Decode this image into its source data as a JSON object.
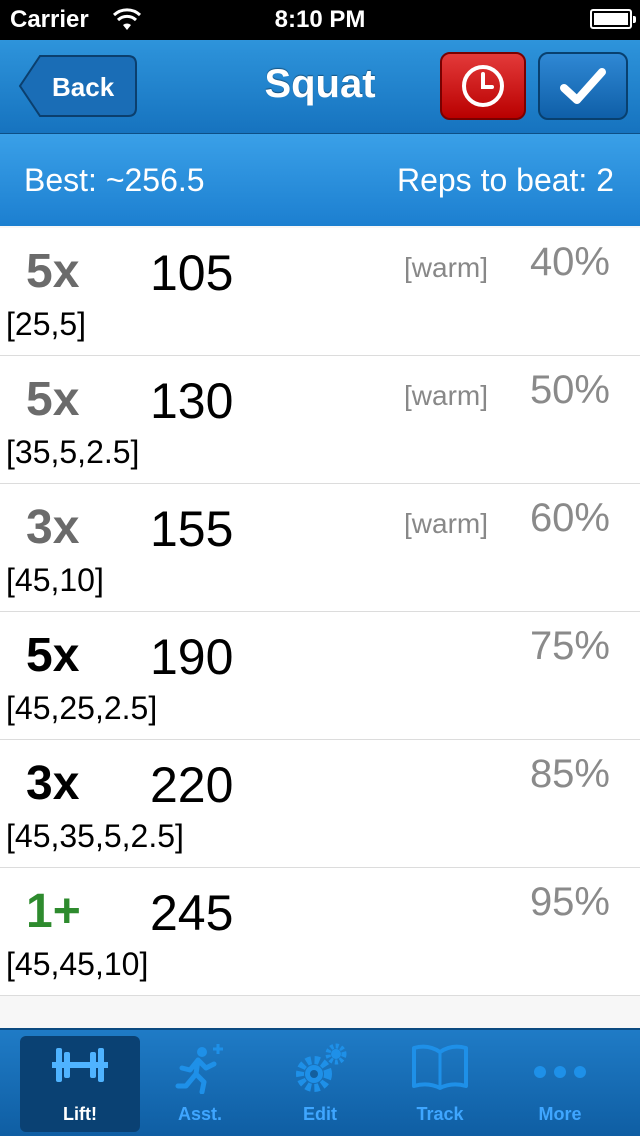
{
  "status_bar": {
    "carrier": "Carrier",
    "time": "8:10 PM"
  },
  "nav": {
    "back_label": "Back",
    "title": "Squat"
  },
  "info": {
    "best": "Best: ~256.5",
    "reps_to_beat": "Reps to beat: 2"
  },
  "sets": [
    {
      "reps": "5x",
      "weight": "105",
      "tag": "[warm]",
      "percent": "40%",
      "plates": "[25,5]"
    },
    {
      "reps": "5x",
      "weight": "130",
      "tag": "[warm]",
      "percent": "50%",
      "plates": "[35,5,2.5]"
    },
    {
      "reps": "3x",
      "weight": "155",
      "tag": "[warm]",
      "percent": "60%",
      "plates": "[45,10]"
    },
    {
      "reps": "5x",
      "weight": "190",
      "tag": "",
      "percent": "75%",
      "plates": "[45,25,2.5]"
    },
    {
      "reps": "3x",
      "weight": "220",
      "tag": "",
      "percent": "85%",
      "plates": "[45,35,5,2.5]"
    },
    {
      "reps": "1+",
      "weight": "245",
      "tag": "",
      "percent": "95%",
      "plates": "[45,45,10]"
    }
  ],
  "tabs": [
    {
      "label": "Lift!",
      "icon": "barbell-icon"
    },
    {
      "label": "Asst.",
      "icon": "runner-plus-icon"
    },
    {
      "label": "Edit",
      "icon": "gears-icon"
    },
    {
      "label": "Track",
      "icon": "book-icon"
    },
    {
      "label": "More",
      "icon": "more-dots-icon"
    }
  ],
  "colors": {
    "nav_blue": "#1f80cc",
    "timer_red": "#d21c1c",
    "amrap_green": "#2e8b2e",
    "tab_active": "#0a4173"
  }
}
